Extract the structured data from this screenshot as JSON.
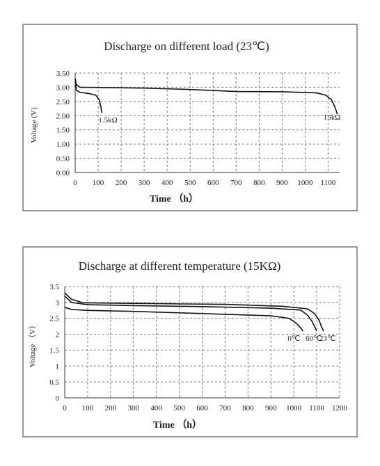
{
  "chart_data": [
    {
      "type": "line",
      "title": "Discharge on different load (23℃)",
      "y_label": "Voltage (V)",
      "x_label": "Time （h）",
      "xlim": [
        0,
        1150
      ],
      "ylim": [
        0,
        3.5
      ],
      "xticks": [
        0,
        100,
        200,
        300,
        400,
        500,
        600,
        700,
        800,
        900,
        1000,
        1100
      ],
      "yticks": [
        {
          "value": 0,
          "label": "0.00"
        },
        {
          "value": 0.5,
          "label": "0.50"
        },
        {
          "value": 1,
          "label": "1.00"
        },
        {
          "value": 1.5,
          "label": "1.50"
        },
        {
          "value": 2,
          "label": "2.00"
        },
        {
          "value": 2.5,
          "label": "2.50"
        },
        {
          "value": 3,
          "label": "3.00"
        },
        {
          "value": 3.5,
          "label": "3.50"
        }
      ],
      "grid": true,
      "series": [
        {
          "name": "1.5kΩ",
          "color": "#111111",
          "x": [
            0,
            5,
            20,
            60,
            90,
            105,
            112,
            116
          ],
          "values": [
            3.3,
            2.9,
            2.82,
            2.78,
            2.72,
            2.55,
            2.3,
            2.1
          ]
        },
        {
          "name": "15kΩ",
          "color": "#111111",
          "x": [
            0,
            5,
            20,
            100,
            300,
            500,
            700,
            900,
            1050,
            1090,
            1115,
            1130,
            1140
          ],
          "values": [
            3.3,
            3.1,
            3.0,
            2.99,
            2.97,
            2.92,
            2.85,
            2.84,
            2.8,
            2.72,
            2.55,
            2.3,
            2.05
          ]
        }
      ]
    },
    {
      "type": "line",
      "title": "Discharge at different temperature (15KΩ)",
      "y_label": "Voltage （V）",
      "x_label": "Time （h）",
      "xlim": [
        0,
        1200
      ],
      "ylim": [
        0,
        3.5
      ],
      "xticks": [
        0,
        100,
        200,
        300,
        400,
        500,
        600,
        700,
        800,
        900,
        1000,
        1100,
        1200
      ],
      "yticks": [
        0,
        0.5,
        1,
        1.5,
        2,
        2.5,
        3,
        3.5
      ],
      "grid": true,
      "series": [
        {
          "name": "0℃",
          "color": "#111111",
          "x": [
            0,
            30,
            100,
            300,
            600,
            900,
            980,
            1010,
            1030,
            1040
          ],
          "values": [
            2.85,
            2.78,
            2.75,
            2.72,
            2.65,
            2.58,
            2.5,
            2.35,
            2.2,
            2.1
          ]
        },
        {
          "name": "60℃",
          "color": "#111111",
          "x": [
            0,
            30,
            100,
            300,
            600,
            900,
            1030,
            1060,
            1080,
            1090,
            1100
          ],
          "values": [
            3.2,
            3.0,
            2.93,
            2.9,
            2.87,
            2.82,
            2.76,
            2.6,
            2.4,
            2.25,
            2.1
          ]
        },
        {
          "name": "23℃",
          "color": "#111111",
          "x": [
            0,
            30,
            80,
            300,
            700,
            950,
            1060,
            1090,
            1110,
            1120,
            1130
          ],
          "values": [
            3.3,
            3.1,
            2.99,
            2.97,
            2.94,
            2.88,
            2.8,
            2.65,
            2.45,
            2.25,
            2.1
          ]
        }
      ]
    }
  ]
}
